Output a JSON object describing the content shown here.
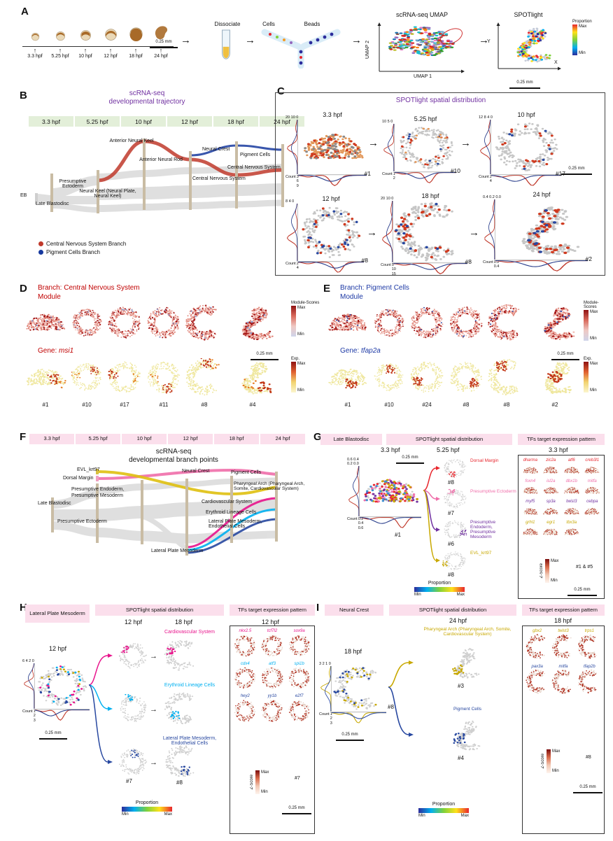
{
  "labels": {
    "max": "Max",
    "min": "Min",
    "count": "Count",
    "zscore": "Z-Score",
    "proportion": "Proportion",
    "module_scores": "Module-Scores",
    "exp": "Exp.",
    "scale": "0.25 mm"
  },
  "shapes6": [
    {
      "shape": "dome"
    },
    {
      "shape": "ring"
    },
    {
      "shape": "ring"
    },
    {
      "shape": "ring"
    },
    {
      "shape": "cshape"
    },
    {
      "shape": "embryo"
    }
  ],
  "panelA": {
    "label": "A",
    "timepoints": [
      {
        "t": "3.3 hpf"
      },
      {
        "t": "5.25 hpf"
      },
      {
        "t": "10 hpf"
      },
      {
        "t": "12 hpf"
      },
      {
        "t": "18 hpf"
      },
      {
        "t": "24 hpf"
      }
    ],
    "dissociate_label": "Dissociate",
    "cells_label": "Cells",
    "beads_label": "Beads",
    "umap_title": "scRNA-seq UMAP",
    "umap_axis_x": "UMAP 1",
    "umap_axis_y": "UMAP 2",
    "spotlight_title": "SPOTlight",
    "axis_x": "X",
    "axis_y": "Y"
  },
  "panelB": {
    "label": "B",
    "title": [
      "scRNA-seq",
      "developmental trajectory"
    ],
    "timepoints": [
      {
        "t": "3.3 hpf"
      },
      {
        "t": "5.25 hpf"
      },
      {
        "t": "10 hpf"
      },
      {
        "t": "12 hpf"
      },
      {
        "t": "18 hpf"
      },
      {
        "t": "24 hpf"
      }
    ],
    "nodes": {
      "eb": "EB",
      "late_blastodisc": "Late Blastodisc",
      "presumptive_ectoderm": "Presumptive Ectoderm",
      "anterior_neural_keel": "Anterior Neural Keel",
      "neural_keel": "Neural Keel (Neural Plate, Neural Keel)",
      "anterior_neural_rod": "Anterior Neural Rod",
      "neural_crest_18": "Neural Crest",
      "cns_18": "Central Nervous System",
      "pigment_cells": "Pigment Cells",
      "cns_24": "Central Nervous System"
    },
    "legend": [
      {
        "label": "Central Nervous System Branch",
        "color": "#c0392b"
      },
      {
        "label": "Pigment Cells Branch",
        "color": "#16389e"
      }
    ]
  },
  "panelC": {
    "label": "C",
    "title": "SPOTlight spatial distribution",
    "sections": [
      {
        "time": "3.3 hpf",
        "id": "#1",
        "axis": "20 10 0",
        "ticks": "3 6 9",
        "shape": "dome",
        "base": "#e2975a",
        "acc": "#cf3a1f:55,#8a8a8a:45"
      },
      {
        "time": "5.25 hpf",
        "id": "#10",
        "axis": "10 5 0",
        "ticks": "1 2",
        "shape": "ring",
        "base": "#c6c6c6",
        "acc": "#cf3a1f:16,#2848a0:8,#e2975a:12"
      },
      {
        "time": "10 hpf",
        "id": "#17",
        "axis": "12 8 4 0",
        "ticks": "2 4",
        "shape": "ring",
        "base": "#c6c6c6",
        "acc": "#cf3a1f:18,#2848a0:6"
      },
      {
        "time": "12 hpf",
        "id": "#8",
        "axis": "8 4 0",
        "ticks": "2 4",
        "shape": "ring",
        "base": "#c6c6c6",
        "acc": "#cf3a1f:26,#2848a0:18"
      },
      {
        "time": "18 hpf",
        "id": "#8",
        "axis": "20 10 0",
        "ticks": "5 10 15",
        "shape": "cshape",
        "base": "#c6c6c6",
        "acc": "#cf3a1f:36,#2848a0:10"
      },
      {
        "time": "24 hpf",
        "id": "#2",
        "axis": "0.4 0.2 0.0",
        "ticks": "0.2 0.4",
        "shape": "embryo",
        "base": "#c6c6c6",
        "acc": "#cf3a1f:46,#2848a0:12"
      }
    ]
  },
  "panelD": {
    "label": "D",
    "branch": "Branch: Central Nervous System",
    "module": "Module",
    "gene_prefix": "Gene: ",
    "gene": "msi1",
    "ids": [
      "#1",
      "#10",
      "#17",
      "#11",
      "#8",
      "#4"
    ]
  },
  "panelE": {
    "label": "E",
    "branch": "Branch: Pigment Cells",
    "module": "Module",
    "gene_prefix": "Gene: ",
    "gene": "tfap2a",
    "ids": [
      "#1",
      "#10",
      "#24",
      "#8",
      "#8",
      "#2"
    ]
  },
  "panelF": {
    "label": "F",
    "title": [
      "scRNA-seq",
      "developmental branch points"
    ],
    "timepoints": [
      {
        "t": "3.3 hpf"
      },
      {
        "t": "5.25 hpf"
      },
      {
        "t": "10 hpf"
      },
      {
        "t": "12 hpf"
      },
      {
        "t": "18 hpf"
      },
      {
        "t": "24 hpf"
      }
    ],
    "nodes": {
      "evl": "EVL_krt97",
      "dorsal_margin": "Dorsal Margin",
      "pres_endoderm": "Presumptive Endoderm,",
      "pres_mesoderm": "Presumptive Mesoderm",
      "late_blastodisc": "Late Blastodisc",
      "pres_ectoderm": "Presumptive Ectoderm",
      "neural_crest": "Neural Crest",
      "pigment_cells": "Pigment Cells",
      "pharyngeal": "Pharyngeal Arch (Pharyngeal Arch, Somite, Cardiovascular System)",
      "cardiovascular": "Cardiovascular System",
      "erythroid": "Erythroid Lineage Cells",
      "lpm_endothelial": "Lateral Plate Mesoderm, Endothelial Cells",
      "lpm": "Lateral Plate Mesoderm"
    }
  },
  "panelG": {
    "label": "G",
    "header_left": "Late Blastodisc",
    "header_mid": "SPOTlight spatial distribution",
    "header_right": "TFs target expression pattern",
    "time_main": "3.3 hpf",
    "time_branch": "5.25 hpf",
    "time_tf": "3.3 hpf",
    "axis_left": "0.6 0.4 0.2 0.0",
    "ticks_bottom": "0.2 0.4 0.6",
    "main_id": "#1",
    "branches": [
      {
        "name": "Dorsal Margin",
        "id": "#8",
        "color": "#e8262d",
        "acc": "#e8262d:20"
      },
      {
        "name": "Presumptive Ectoderm",
        "id": "#7",
        "color": "#f06eaa",
        "acc": "#f06eaa:20"
      },
      {
        "name": "Presumptive Endoderm, Presumptive Mesoderm",
        "id": "#6",
        "color": "#7030a0",
        "acc": "#7030a0:20"
      },
      {
        "name": "EVL_krt97",
        "id": "#8",
        "color": "#c8a800",
        "acc": "#c8a800:20"
      }
    ],
    "tf_cells": [
      {
        "g": "dharma",
        "c": "#e8262d"
      },
      {
        "g": "zic2a",
        "c": "#e8262d"
      },
      {
        "g": "atf6",
        "c": "#e8262d"
      },
      {
        "g": "creb3l1",
        "c": "#e8262d"
      },
      {
        "g": "foxn4",
        "c": "#f06eaa"
      },
      {
        "g": "isl2a",
        "c": "#f06eaa"
      },
      {
        "g": "dbx1b",
        "c": "#f06eaa"
      },
      {
        "g": "mitfa",
        "c": "#f06eaa"
      },
      {
        "g": "myf5",
        "c": "#7030a0"
      },
      {
        "g": "sp3a",
        "c": "#7030a0"
      },
      {
        "g": "twist3",
        "c": "#7030a0"
      },
      {
        "g": "cebpa",
        "c": "#7030a0"
      },
      {
        "g": "grhl1",
        "c": "#c8a800"
      },
      {
        "g": "egr1",
        "c": "#c8a800"
      },
      {
        "g": "tbx3a",
        "c": "#c8a800"
      }
    ],
    "tf_id": "#1 & #5"
  },
  "panelH": {
    "label": "H",
    "header_left": "Lateral Plate Mesoderm",
    "header_mid": "SPOTlight spatial distribution",
    "header_right": "TFs target expression pattern",
    "time_a": "12 hpf",
    "time_b": "18 hpf",
    "time_tf": "12 hpf",
    "time_main": "12 hpf",
    "axis_left": "6 4 2 0",
    "ticks_bottom": "1 2 3",
    "branches": [
      {
        "name": "Cardiovascular System",
        "color": "#e8148c",
        "acc": "#e8148c:16",
        "id_a": "",
        "id_b": ""
      },
      {
        "name": "Erythroid Lineage Cells",
        "color": "#00b0f0",
        "acc": "#00b0f0:16",
        "id_a": "",
        "id_b": ""
      },
      {
        "name": "Lateral Plate Mesoderm, Endothelial Cells",
        "color": "#2848a0",
        "acc": "#2848a0:16",
        "id_a": "#7",
        "id_b": "#8"
      }
    ],
    "tf_cells": [
      {
        "g": "nkx2.5",
        "c": "#e8148c"
      },
      {
        "g": "tcf7l2",
        "c": "#e8148c"
      },
      {
        "g": "sox9a",
        "c": "#e8148c"
      },
      {
        "g": "cdx4",
        "c": "#00b0f0"
      },
      {
        "g": "atf3",
        "c": "#00b0f0"
      },
      {
        "g": "spi1b",
        "c": "#00b0f0"
      },
      {
        "g": "hey2",
        "c": "#2848a0"
      },
      {
        "g": "yy1b",
        "c": "#2848a0"
      },
      {
        "g": "e2f7",
        "c": "#2848a0"
      }
    ],
    "tf_id": "#7"
  },
  "panelI": {
    "label": "I",
    "header_left": "Neural Crest",
    "header_mid": "SPOTlight spatial distribution",
    "header_right": "TFs target expression pattern",
    "time_b": "24 hpf",
    "time_tf": "18 hpf",
    "time_main": "18 hpf",
    "axis_left": "3 2 1 0",
    "ticks_bottom": "1 2 3",
    "main_id": "#8",
    "branches": [
      {
        "name": "Pharyngeal Arch (Pharyngeal Arch, Somite, Cardiovascular System)",
        "color": "#c8a800",
        "acc": "#c8a800:22",
        "id": "#3"
      },
      {
        "name": "Pigment Cells",
        "color": "#2848a0",
        "acc": "#2848a0:22",
        "id": "#4"
      }
    ],
    "tf_cells": [
      {
        "g": "gbx2",
        "c": "#c8a800"
      },
      {
        "g": "twist3",
        "c": "#c8a800"
      },
      {
        "g": "trps1",
        "c": "#c8a800"
      },
      {
        "g": "pax3a",
        "c": "#2848a0"
      },
      {
        "g": "mitfa",
        "c": "#2848a0"
      },
      {
        "g": "tfap2b",
        "c": "#2848a0"
      }
    ],
    "tf_id": "#8"
  }
}
